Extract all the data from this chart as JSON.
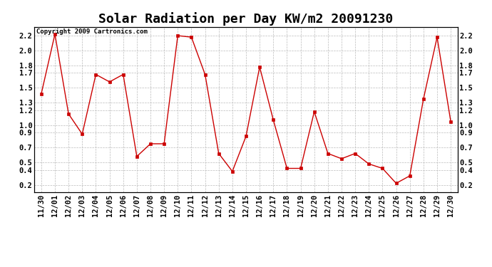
{
  "title": "Solar Radiation per Day KW/m2 20091230",
  "copyright_text": "Copyright 2009 Cartronics.com",
  "x_labels": [
    "11/30",
    "12/01",
    "12/02",
    "12/03",
    "12/04",
    "12/05",
    "12/06",
    "12/07",
    "12/08",
    "12/09",
    "12/10",
    "12/11",
    "12/12",
    "12/13",
    "12/14",
    "12/15",
    "12/16",
    "12/17",
    "12/18",
    "12/19",
    "12/20",
    "12/21",
    "12/22",
    "12/23",
    "12/24",
    "12/25",
    "12/26",
    "12/27",
    "12/28",
    "12/29",
    "12/30"
  ],
  "y_values": [
    1.42,
    2.22,
    1.15,
    0.88,
    1.68,
    1.58,
    1.68,
    0.58,
    0.75,
    0.75,
    2.2,
    2.18,
    1.68,
    0.62,
    0.38,
    0.85,
    1.78,
    1.07,
    0.42,
    0.42,
    1.18,
    0.62,
    0.55,
    0.62,
    0.48,
    0.42,
    0.22,
    0.32,
    1.35,
    2.18,
    1.05
  ],
  "line_color": "#cc0000",
  "marker": "s",
  "marker_size": 3,
  "marker_color": "#cc0000",
  "ylim": [
    0.1,
    2.32
  ],
  "yticks": [
    0.2,
    0.4,
    0.5,
    0.7,
    0.9,
    1.0,
    1.2,
    1.3,
    1.5,
    1.7,
    1.8,
    2.0,
    2.2
  ],
  "grid_color": "#bbbbbb",
  "grid_style": "--",
  "bg_color": "#ffffff",
  "title_fontsize": 13,
  "tick_fontsize": 7.5,
  "copyright_fontsize": 6.5
}
